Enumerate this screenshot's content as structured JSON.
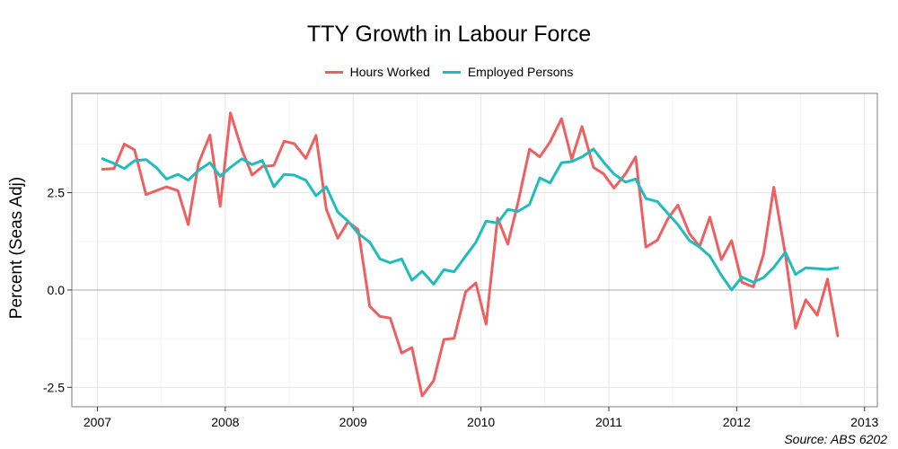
{
  "chart_data": {
    "type": "line",
    "title": "TTY Growth in Labour Force",
    "xlabel": "",
    "ylabel": "Percent (Seas Adj)",
    "source": "Source: ABS 6202",
    "xlim": [
      2006.8,
      2013.1
    ],
    "ylim": [
      -3.0,
      5.05
    ],
    "x_ticks": [
      2007,
      2008,
      2009,
      2010,
      2011,
      2012,
      2013
    ],
    "x_tick_labels": [
      "2007",
      "2008",
      "2009",
      "2010",
      "2011",
      "2012",
      "2013"
    ],
    "y_ticks": [
      -2.5,
      0.0,
      2.5
    ],
    "y_tick_labels": [
      "-2.5",
      "0.0",
      "2.5"
    ],
    "grid": true,
    "legend_position": "top",
    "x": [
      2007.04,
      2007.13,
      2007.21,
      2007.29,
      2007.38,
      2007.46,
      2007.54,
      2007.63,
      2007.71,
      2007.79,
      2007.88,
      2007.96,
      2008.04,
      2008.13,
      2008.21,
      2008.29,
      2008.38,
      2008.46,
      2008.54,
      2008.63,
      2008.71,
      2008.79,
      2008.88,
      2008.96,
      2009.04,
      2009.13,
      2009.21,
      2009.29,
      2009.38,
      2009.46,
      2009.54,
      2009.63,
      2009.71,
      2009.79,
      2009.88,
      2009.96,
      2010.04,
      2010.13,
      2010.21,
      2010.29,
      2010.38,
      2010.46,
      2010.54,
      2010.63,
      2010.71,
      2010.79,
      2010.88,
      2010.96,
      2011.04,
      2011.13,
      2011.21,
      2011.29,
      2011.38,
      2011.46,
      2011.54,
      2011.63,
      2011.71,
      2011.79,
      2011.88,
      2011.96,
      2012.04,
      2012.13,
      2012.21,
      2012.29,
      2012.38,
      2012.46,
      2012.54,
      2012.63,
      2012.71,
      2012.79
    ],
    "series": [
      {
        "name": "Hours Worked",
        "color": "#ef5f5f",
        "values": [
          3.1,
          3.12,
          3.75,
          3.6,
          2.45,
          2.55,
          2.65,
          2.55,
          1.68,
          3.25,
          3.98,
          2.15,
          4.55,
          3.6,
          2.95,
          3.17,
          3.2,
          3.82,
          3.76,
          3.38,
          3.97,
          2.08,
          1.33,
          1.75,
          1.55,
          -0.42,
          -0.68,
          -0.72,
          -1.62,
          -1.48,
          -2.72,
          -2.33,
          -1.27,
          -1.24,
          -0.05,
          0.18,
          -0.88,
          1.85,
          1.18,
          2.25,
          3.62,
          3.42,
          3.8,
          4.4,
          3.36,
          4.2,
          3.15,
          2.98,
          2.62,
          2.98,
          3.42,
          1.1,
          1.28,
          1.82,
          2.18,
          1.45,
          1.12,
          1.87,
          0.78,
          1.27,
          0.2,
          0.08,
          0.92,
          2.64,
          0.92,
          -0.98,
          -0.25,
          -0.65,
          0.28,
          -1.18
        ]
      },
      {
        "name": "Employed Persons",
        "color": "#1fbcbe",
        "values": [
          3.37,
          3.25,
          3.12,
          3.32,
          3.35,
          3.15,
          2.85,
          2.97,
          2.82,
          3.07,
          3.27,
          2.92,
          3.15,
          3.37,
          3.22,
          3.33,
          2.65,
          2.97,
          2.95,
          2.82,
          2.42,
          2.65,
          2.0,
          1.77,
          1.45,
          1.23,
          0.8,
          0.7,
          0.8,
          0.25,
          0.48,
          0.15,
          0.52,
          0.47,
          0.87,
          1.22,
          1.77,
          1.72,
          2.07,
          2.02,
          2.2,
          2.88,
          2.75,
          3.27,
          3.3,
          3.42,
          3.62,
          3.28,
          2.98,
          2.77,
          2.85,
          2.35,
          2.27,
          1.97,
          1.68,
          1.27,
          1.1,
          0.87,
          0.38,
          0.0,
          0.33,
          0.2,
          0.32,
          0.58,
          0.97,
          0.4,
          0.57,
          0.55,
          0.53,
          0.57
        ]
      }
    ]
  }
}
